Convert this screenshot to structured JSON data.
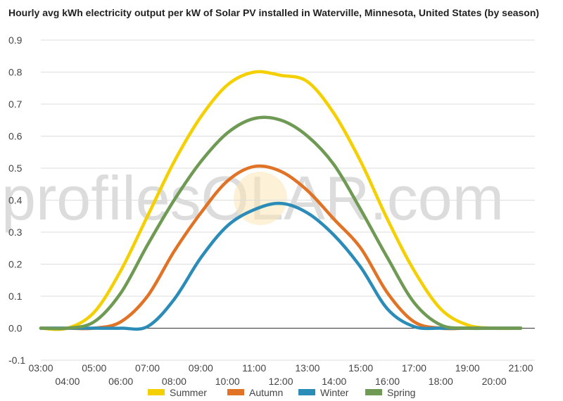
{
  "chart_data": {
    "type": "line",
    "title": "Hourly avg kWh electricity output per kW of Solar PV installed in Waterville, Minnesota, United States (by season)",
    "xlabel": "",
    "ylabel": "",
    "ylim": [
      -0.1,
      0.9
    ],
    "yticks": [
      "-0.1",
      "0.0",
      "0.1",
      "0.2",
      "0.3",
      "0.4",
      "0.5",
      "0.6",
      "0.7",
      "0.8",
      "0.9"
    ],
    "xticks": [
      "03:00",
      "04:00",
      "05:00",
      "06:00",
      "07:00",
      "08:00",
      "09:00",
      "10:00",
      "11:00",
      "12:00",
      "13:00",
      "14:00",
      "15:00",
      "16:00",
      "17:00",
      "18:00",
      "19:00",
      "20:00",
      "21:00"
    ],
    "grid": true,
    "legend_position": "bottom",
    "watermark": "profilesOLAR.com",
    "x": [
      3,
      4,
      5,
      6,
      7,
      8,
      9,
      10,
      11,
      12,
      13,
      14,
      15,
      16,
      17,
      18,
      19,
      20,
      21
    ],
    "series": [
      {
        "name": "Summer",
        "color": "#f5d000",
        "values": [
          0.0,
          0.0,
          0.05,
          0.18,
          0.35,
          0.52,
          0.66,
          0.76,
          0.8,
          0.79,
          0.77,
          0.67,
          0.52,
          0.34,
          0.18,
          0.06,
          0.01,
          0.0,
          0.0
        ]
      },
      {
        "name": "Autumn",
        "color": "#e07326",
        "values": [
          0.0,
          0.0,
          0.0,
          0.02,
          0.1,
          0.24,
          0.36,
          0.46,
          0.505,
          0.49,
          0.43,
          0.34,
          0.25,
          0.11,
          0.02,
          0.0,
          0.0,
          0.0,
          0.0
        ]
      },
      {
        "name": "Winter",
        "color": "#2b8cb8",
        "values": [
          0.0,
          0.0,
          0.0,
          0.0,
          0.005,
          0.09,
          0.22,
          0.32,
          0.37,
          0.39,
          0.36,
          0.29,
          0.19,
          0.06,
          0.005,
          0.0,
          0.0,
          0.0,
          0.0
        ]
      },
      {
        "name": "Spring",
        "color": "#6e9a53",
        "values": [
          0.0,
          0.0,
          0.02,
          0.11,
          0.26,
          0.4,
          0.52,
          0.61,
          0.655,
          0.65,
          0.6,
          0.51,
          0.37,
          0.22,
          0.08,
          0.01,
          0.0,
          0.0,
          0.0
        ]
      }
    ]
  }
}
